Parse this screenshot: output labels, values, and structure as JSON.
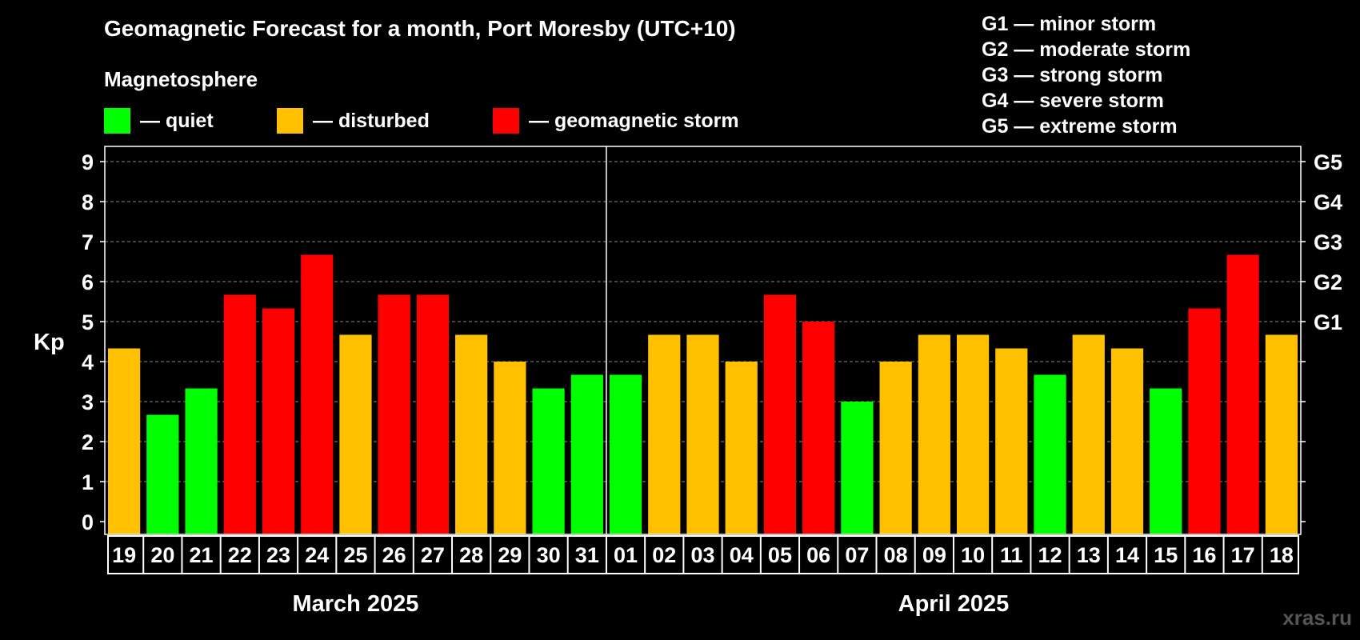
{
  "title": "Geomagnetic Forecast for a month, Port Moresby (UTC+10)",
  "legend": {
    "heading": "Magnetosphere",
    "items": [
      {
        "label": "— quiet",
        "color": "#00ff00"
      },
      {
        "label": "— disturbed",
        "color": "#ffc000"
      },
      {
        "label": "— geomagnetic storm",
        "color": "#ff0000"
      }
    ]
  },
  "storm_scale": [
    "G1 — minor storm",
    "G2 — moderate storm",
    "G3 — strong storm",
    "G4 — severe storm",
    "G5 — extreme storm"
  ],
  "watermark": "xras.ru",
  "chart_data": {
    "type": "bar",
    "ylabel": "Kp",
    "ylim": [
      0,
      9
    ],
    "yticks": [
      "0",
      "1",
      "2",
      "3",
      "4",
      "5",
      "6",
      "7",
      "8",
      "9"
    ],
    "right_axis_labels": [
      {
        "kp": 5,
        "label": "G1"
      },
      {
        "kp": 6,
        "label": "G2"
      },
      {
        "kp": 7,
        "label": "G3"
      },
      {
        "kp": 8,
        "label": "G4"
      },
      {
        "kp": 9,
        "label": "G5"
      }
    ],
    "grid": "horizontal dashed",
    "months": [
      {
        "label": "March 2025",
        "days": 13
      },
      {
        "label": "April 2025",
        "days": 18
      }
    ],
    "categories": [
      "19",
      "20",
      "21",
      "22",
      "23",
      "24",
      "25",
      "26",
      "27",
      "28",
      "29",
      "30",
      "31",
      "01",
      "02",
      "03",
      "04",
      "05",
      "06",
      "07",
      "08",
      "09",
      "10",
      "11",
      "12",
      "13",
      "14",
      "15",
      "16",
      "17",
      "18"
    ],
    "values": [
      4.33,
      2.67,
      3.33,
      5.67,
      5.33,
      6.67,
      4.67,
      5.67,
      5.67,
      4.67,
      4.0,
      3.33,
      3.67,
      3.67,
      4.67,
      4.67,
      4.0,
      5.67,
      5.0,
      3.0,
      4.0,
      4.67,
      4.67,
      4.33,
      3.67,
      4.67,
      4.33,
      3.33,
      5.33,
      6.67,
      4.67
    ],
    "levels": [
      "disturbed",
      "quiet",
      "quiet",
      "storm",
      "storm",
      "storm",
      "disturbed",
      "storm",
      "storm",
      "disturbed",
      "disturbed",
      "quiet",
      "quiet",
      "quiet",
      "disturbed",
      "disturbed",
      "disturbed",
      "storm",
      "storm",
      "quiet",
      "disturbed",
      "disturbed",
      "disturbed",
      "disturbed",
      "quiet",
      "disturbed",
      "disturbed",
      "quiet",
      "storm",
      "storm",
      "disturbed"
    ],
    "level_colors": {
      "quiet": "#00ff00",
      "disturbed": "#ffc000",
      "storm": "#ff0000"
    }
  }
}
